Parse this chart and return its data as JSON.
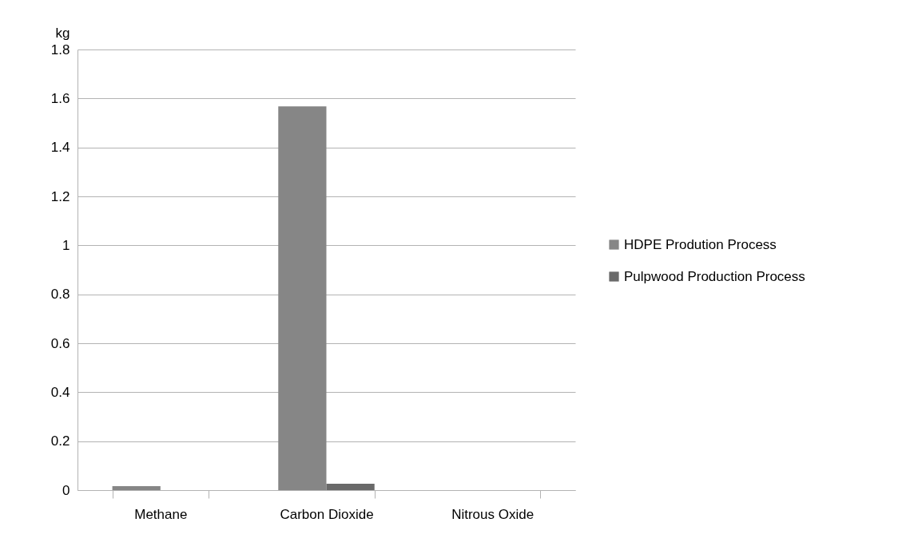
{
  "chart_data": {
    "type": "bar",
    "ylabel": "kg",
    "categories": [
      "Methane",
      "Carbon Dioxide",
      "Nitrous Oxide"
    ],
    "series": [
      {
        "name": "HDPE Prodution Process",
        "color": "#868686",
        "values": [
          0.016,
          1.568,
          0
        ]
      },
      {
        "name": "Pulpwood Production Process",
        "color": "#696969",
        "values": [
          0,
          0.026,
          0
        ]
      }
    ],
    "ylim": [
      0,
      1.8
    ],
    "yticks": [
      0,
      0.2,
      0.4,
      0.6,
      0.8,
      1,
      1.2,
      1.4,
      1.6,
      1.8
    ],
    "grid": "y",
    "legend": "right"
  }
}
